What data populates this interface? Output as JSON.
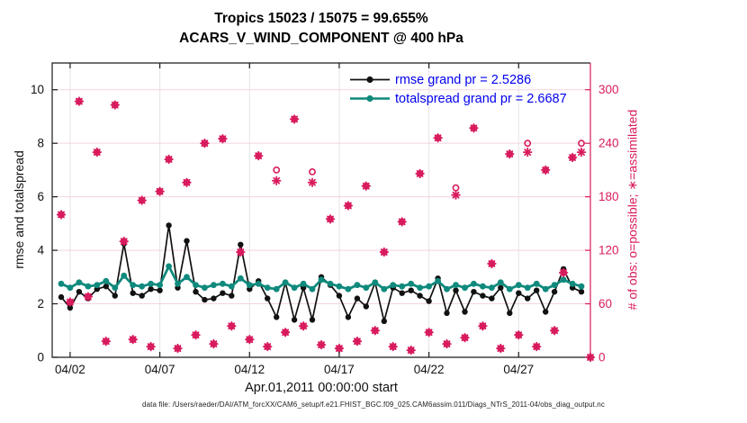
{
  "figure": {
    "title_line1": "Tropics 15023 / 15075 = 99.655%",
    "title_line2": "ACARS_V_WIND_COMPONENT @ 400 hPa",
    "footer": "data file: /Users/raeder/DAI/ATM_forcXX/CAM6_setup/f.e21.FHIST_BGC.f09_025.CAM6assim.011/Diags_NTrS_2011-04/obs_diag_output.nc"
  },
  "legend": {
    "rmse_label": "rmse grand pr = 2.5286",
    "totalspread_label": "totalspread grand pr = 2.6687"
  },
  "chart_data": {
    "type": "line",
    "title": "Tropics 15023 / 15075 = 99.655%",
    "subtitle": "ACARS_V_WIND_COMPONENT @ 400 hPa",
    "xlabel": "Apr.01,2011 00:00:00 start",
    "ylabel_left": "rmse and totalspread",
    "ylabel_right": "# of obs: o=possible; ∗=assimilated",
    "grid": true,
    "legend_position": "top-right-inside",
    "x_start_day": 1.5,
    "x_step_days": 0.5,
    "xlim_days": [
      1,
      31
    ],
    "xticks": [
      {
        "day": 2,
        "label": "04/02"
      },
      {
        "day": 7,
        "label": "04/07"
      },
      {
        "day": 12,
        "label": "04/12"
      },
      {
        "day": 17,
        "label": "04/17"
      },
      {
        "day": 22,
        "label": "04/22"
      },
      {
        "day": 27,
        "label": "04/27"
      }
    ],
    "ylim_left": [
      0,
      11
    ],
    "yticks_left": [
      0,
      2,
      4,
      6,
      8,
      10
    ],
    "ylim_right": [
      0,
      330
    ],
    "yticks_right": [
      0,
      60,
      120,
      180,
      240,
      300
    ],
    "colors": {
      "rmse": "#111111",
      "totalspread": "#0f8a7d",
      "obs": "#d81b5e",
      "legend_text": "#0000ee",
      "axis": "#1a1a1a",
      "grid_horizontal": "#f5d3e0",
      "grid_vertical": "#e7e3e6"
    },
    "series": [
      {
        "name": "rmse",
        "legend": "rmse grand pr = 2.5286",
        "grand_value": 2.5286,
        "axis": "left",
        "values": [
          2.25,
          1.85,
          2.45,
          2.2,
          2.55,
          2.65,
          2.3,
          4.25,
          2.4,
          2.3,
          2.55,
          2.5,
          4.93,
          2.6,
          4.35,
          2.45,
          2.15,
          2.2,
          2.4,
          2.3,
          4.21,
          2.55,
          2.85,
          2.2,
          1.5,
          2.8,
          1.4,
          2.6,
          1.4,
          3.0,
          2.7,
          2.3,
          1.5,
          2.2,
          1.9,
          2.8,
          1.35,
          2.6,
          2.4,
          2.5,
          2.3,
          2.1,
          2.95,
          1.65,
          2.5,
          1.7,
          2.45,
          2.3,
          2.2,
          2.6,
          1.65,
          2.4,
          2.2,
          2.5,
          1.7,
          2.45,
          3.3,
          2.6,
          2.45,
          null
        ]
      },
      {
        "name": "totalspread",
        "legend": "totalspread grand pr = 2.6687",
        "grand_value": 2.6687,
        "axis": "left",
        "values": [
          2.75,
          2.6,
          2.8,
          2.65,
          2.7,
          2.85,
          2.6,
          3.05,
          2.7,
          2.65,
          2.75,
          2.7,
          3.4,
          2.75,
          3.0,
          2.7,
          2.6,
          2.7,
          2.75,
          2.65,
          2.95,
          2.7,
          2.75,
          2.6,
          2.55,
          2.8,
          2.6,
          2.75,
          2.55,
          2.9,
          2.75,
          2.65,
          2.55,
          2.7,
          2.6,
          2.8,
          2.55,
          2.7,
          2.65,
          2.75,
          2.6,
          2.65,
          2.85,
          2.55,
          2.7,
          2.6,
          2.75,
          2.65,
          2.6,
          2.8,
          2.55,
          2.7,
          2.6,
          2.75,
          2.55,
          2.7,
          2.9,
          2.75,
          2.65,
          null
        ]
      },
      {
        "name": "obs_possible",
        "legend": "o=possible",
        "axis": "right",
        "marker": "o",
        "values": [
          160,
          62,
          287,
          68,
          230,
          18,
          283,
          130,
          20,
          176,
          12,
          186,
          222,
          10,
          196,
          25,
          240,
          15,
          245,
          35,
          118,
          20,
          226,
          12,
          210,
          28,
          267,
          35,
          208,
          14,
          155,
          10,
          170,
          18,
          192,
          30,
          118,
          12,
          152,
          8,
          206,
          28,
          246,
          15,
          190,
          22,
          257,
          35,
          105,
          10,
          228,
          25,
          240,
          12,
          210,
          30,
          95,
          224,
          240,
          0
        ]
      },
      {
        "name": "obs_assimilated",
        "legend": "∗=assimilated",
        "axis": "right",
        "marker": "asterisk",
        "values": [
          160,
          62,
          287,
          68,
          230,
          18,
          283,
          130,
          20,
          176,
          12,
          186,
          222,
          10,
          196,
          25,
          240,
          15,
          245,
          35,
          118,
          20,
          226,
          12,
          198,
          28,
          267,
          35,
          196,
          14,
          155,
          10,
          170,
          18,
          192,
          30,
          118,
          12,
          152,
          8,
          206,
          28,
          246,
          15,
          182,
          22,
          257,
          35,
          105,
          10,
          228,
          25,
          230,
          12,
          210,
          30,
          95,
          224,
          230,
          0
        ]
      }
    ]
  }
}
